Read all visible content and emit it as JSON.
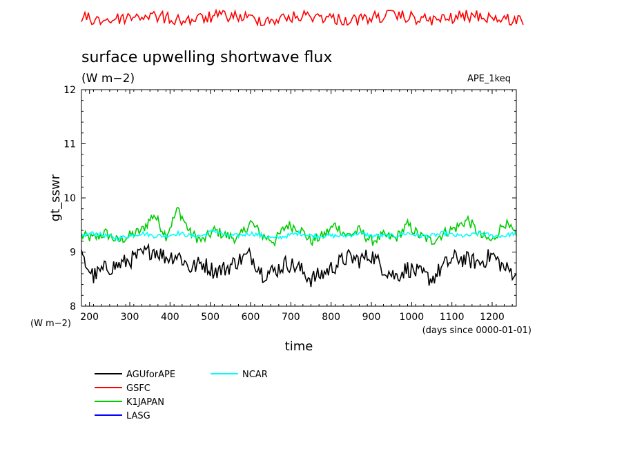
{
  "chart_data": {
    "type": "line",
    "title": "surface upwelling shortwave flux",
    "units": "(W m−2)",
    "experiment": "APE_1keq",
    "xlabel": "time",
    "xunits": "(days since 0000-01-01)",
    "ylabel": "gt_sswr",
    "yunits": "(W m−2)",
    "xlim": [
      180,
      1260
    ],
    "ylim": [
      8,
      12
    ],
    "xticks": [
      200,
      300,
      400,
      500,
      600,
      700,
      800,
      900,
      1000,
      1100,
      1200
    ],
    "yticks": [
      8,
      9,
      10,
      11,
      12
    ],
    "grid": false,
    "legend_position": "bottom-left",
    "gsfc_note": "GSFC series drawn above the plotting frame (values out of y-range)",
    "series": [
      {
        "name": "AGUforAPE",
        "color": "#000000",
        "x": [
          180,
          210,
          240,
          270,
          300,
          330,
          360,
          390,
          420,
          450,
          480,
          510,
          540,
          570,
          600,
          630,
          660,
          690,
          720,
          750,
          780,
          810,
          840,
          870,
          900,
          930,
          960,
          990,
          1020,
          1050,
          1080,
          1110,
          1140,
          1170,
          1200,
          1230,
          1260
        ],
        "values": [
          8.9,
          8.55,
          8.7,
          8.75,
          8.85,
          8.95,
          9.05,
          8.9,
          8.95,
          8.7,
          8.8,
          8.65,
          8.7,
          8.85,
          8.95,
          8.6,
          8.65,
          8.8,
          8.7,
          8.5,
          8.6,
          8.75,
          8.9,
          8.85,
          8.95,
          8.7,
          8.55,
          8.7,
          8.6,
          8.5,
          8.75,
          8.9,
          8.85,
          8.8,
          8.95,
          8.7,
          8.6
        ]
      },
      {
        "name": "GSFC",
        "color": "#ff0000",
        "x": [],
        "values": []
      },
      {
        "name": "K1JAPAN",
        "color": "#00cc00",
        "x": [
          180,
          210,
          240,
          270,
          300,
          330,
          360,
          390,
          420,
          450,
          480,
          510,
          540,
          570,
          600,
          630,
          660,
          690,
          720,
          750,
          780,
          810,
          840,
          870,
          900,
          930,
          960,
          990,
          1020,
          1050,
          1080,
          1110,
          1140,
          1170,
          1200,
          1230,
          1260
        ],
        "values": [
          9.3,
          9.25,
          9.35,
          9.2,
          9.3,
          9.4,
          9.7,
          9.3,
          9.8,
          9.35,
          9.2,
          9.4,
          9.3,
          9.25,
          9.55,
          9.3,
          9.2,
          9.5,
          9.45,
          9.2,
          9.3,
          9.5,
          9.3,
          9.4,
          9.2,
          9.3,
          9.25,
          9.5,
          9.3,
          9.2,
          9.35,
          9.45,
          9.6,
          9.3,
          9.2,
          9.55,
          9.3
        ]
      },
      {
        "name": "LASG",
        "color": "#0000ff",
        "x": [],
        "values": []
      },
      {
        "name": "NCAR",
        "color": "#00ffff",
        "x": [
          180,
          210,
          240,
          270,
          300,
          330,
          360,
          390,
          420,
          450,
          480,
          510,
          540,
          570,
          600,
          630,
          660,
          690,
          720,
          750,
          780,
          810,
          840,
          870,
          900,
          930,
          960,
          990,
          1020,
          1050,
          1080,
          1110,
          1140,
          1170,
          1200,
          1230,
          1260
        ],
        "values": [
          9.3,
          9.35,
          9.3,
          9.25,
          9.3,
          9.35,
          9.3,
          9.3,
          9.35,
          9.3,
          9.3,
          9.4,
          9.3,
          9.3,
          9.35,
          9.3,
          9.25,
          9.3,
          9.35,
          9.3,
          9.3,
          9.3,
          9.3,
          9.35,
          9.3,
          9.3,
          9.3,
          9.35,
          9.3,
          9.3,
          9.35,
          9.3,
          9.3,
          9.35,
          9.3,
          9.3,
          9.35
        ]
      }
    ]
  }
}
